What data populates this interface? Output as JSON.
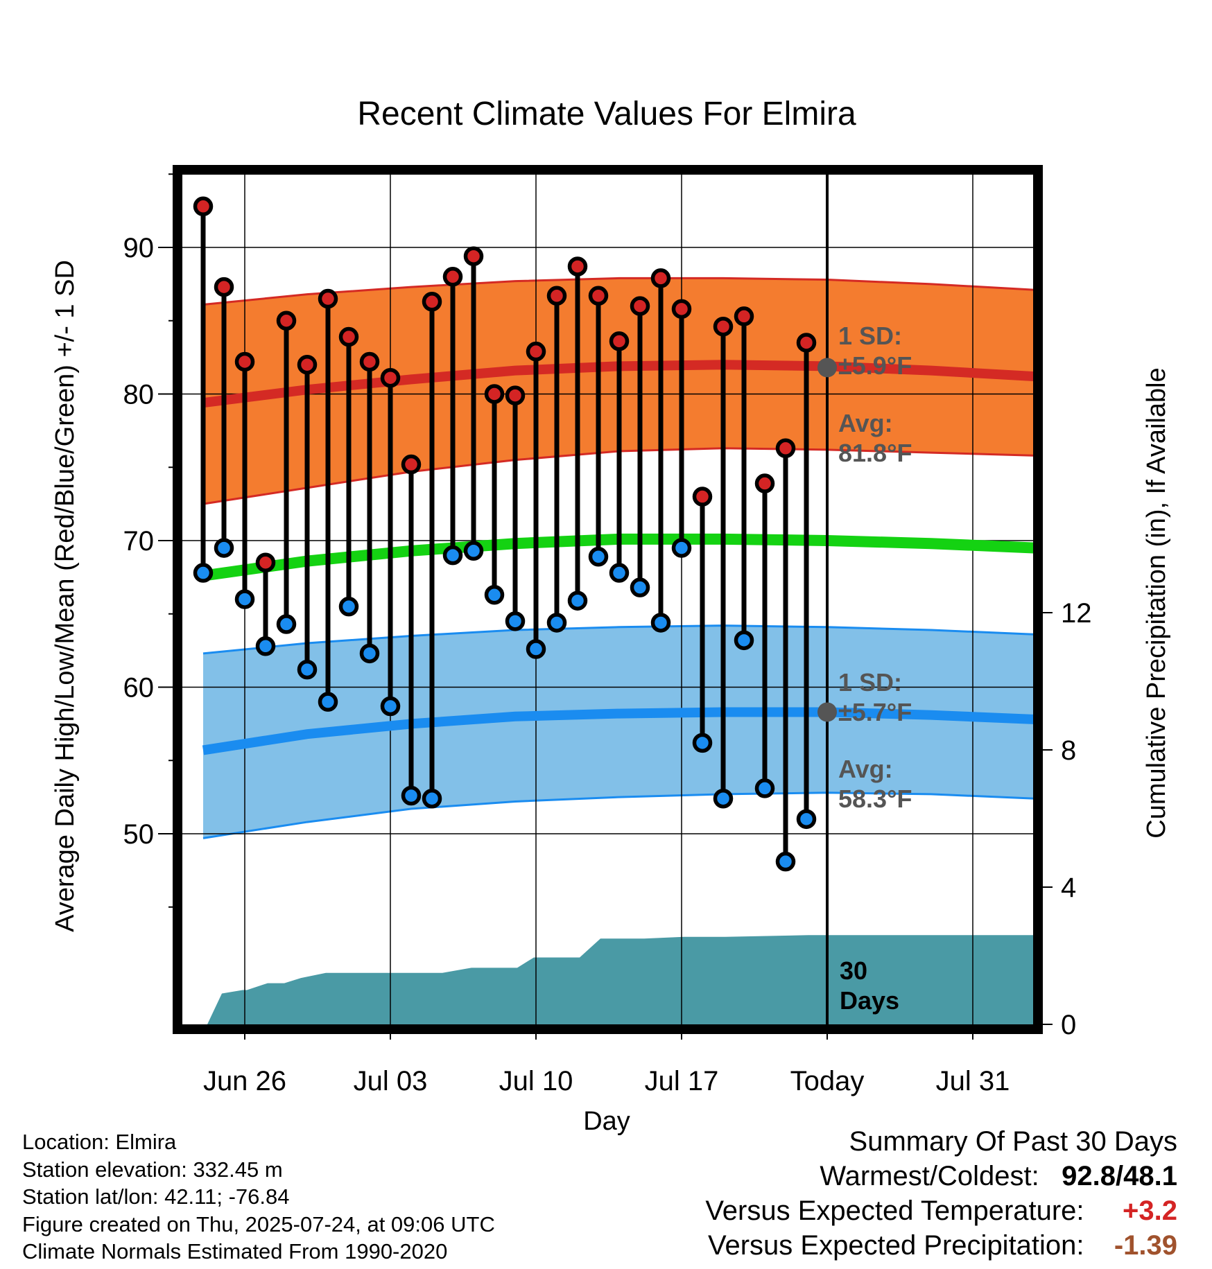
{
  "chart_data": {
    "type": "line",
    "title": "Recent Climate Values For Elmira",
    "xlabel": "Day",
    "ylabel": "Average Daily High/Low/Mean (Red/Blue/Green) +/- 1 SD",
    "y2label": "Cumulative Precipitation (in), If Available",
    "x_ticks": [
      "Jun 26",
      "Jul 03",
      "Jul 10",
      "Jul 17",
      "Today",
      "Jul 31"
    ],
    "x_tick_days": [
      2,
      9,
      16,
      23,
      30,
      37
    ],
    "xlim": [
      -1,
      41.3
    ],
    "ylim": [
      41,
      98
    ],
    "y_ticks": [
      50,
      60,
      70,
      80,
      90
    ],
    "y2lim": [
      0,
      24
    ],
    "y2_ticks": [
      0,
      4,
      8,
      12
    ],
    "today_day": 30,
    "today_label": [
      "30",
      "Days"
    ],
    "normals": {
      "days": [
        0,
        5,
        10,
        15,
        20,
        25,
        30,
        35,
        40
      ],
      "high_avg": [
        79.4,
        80.3,
        81.0,
        81.6,
        81.9,
        82.0,
        81.9,
        81.6,
        81.2
      ],
      "high_upper": [
        86.1,
        86.8,
        87.3,
        87.7,
        87.9,
        87.9,
        87.8,
        87.5,
        87.1
      ],
      "high_lower": [
        72.5,
        73.6,
        74.7,
        75.5,
        76.1,
        76.3,
        76.2,
        76.0,
        75.8
      ],
      "mean_avg": [
        67.6,
        68.6,
        69.3,
        69.8,
        70.1,
        70.1,
        70.0,
        69.8,
        69.5
      ],
      "low_avg": [
        55.7,
        56.8,
        57.5,
        58.0,
        58.2,
        58.3,
        58.3,
        58.1,
        57.8
      ],
      "low_upper": [
        62.3,
        63.0,
        63.5,
        63.9,
        64.1,
        64.2,
        64.1,
        63.9,
        63.6
      ],
      "low_lower": [
        49.7,
        50.8,
        51.7,
        52.2,
        52.5,
        52.7,
        52.8,
        52.7,
        52.4
      ]
    },
    "annotations": {
      "high_sd": [
        "1 SD:",
        "±5.9°F"
      ],
      "high_avg": [
        "Avg:",
        "81.8°F"
      ],
      "low_sd": [
        "1 SD:",
        "±5.7°F"
      ],
      "low_avg": [
        "Avg:",
        "58.3°F"
      ]
    },
    "highs": [
      92.8,
      87.3,
      82.2,
      68.5,
      85.0,
      82.0,
      86.5,
      83.9,
      82.2,
      81.1,
      75.2,
      86.3,
      88.0,
      89.4,
      80.0,
      79.9,
      82.9,
      86.7,
      88.7,
      86.7,
      83.6,
      86.0,
      87.9,
      85.8,
      73.0,
      84.6,
      85.3,
      73.9,
      76.3,
      83.5
    ],
    "lows": [
      67.8,
      69.5,
      66.0,
      62.8,
      64.3,
      61.2,
      59.0,
      65.5,
      62.3,
      58.7,
      52.6,
      52.4,
      69.0,
      69.3,
      66.3,
      64.5,
      62.6,
      64.4,
      65.9,
      68.9,
      67.8,
      66.8,
      64.4,
      69.5,
      56.2,
      52.4,
      63.2,
      53.1,
      48.1,
      51.0
    ],
    "precip": {
      "days": [
        0.2,
        0.9,
        1.9,
        2.1,
        3.1,
        3.9,
        4.7,
        5.9,
        9.1,
        10.1,
        11.5,
        12.9,
        15.1,
        15.9,
        16.1,
        18.1,
        19.1,
        20.1,
        21.2,
        23.1,
        25.1,
        29.1,
        30.1,
        40.3
      ],
      "values": [
        0.0,
        0.9,
        1.0,
        1.0,
        1.2,
        1.2,
        1.35,
        1.5,
        1.5,
        1.5,
        1.5,
        1.65,
        1.65,
        1.95,
        1.95,
        1.95,
        2.5,
        2.5,
        2.5,
        2.55,
        2.55,
        2.6,
        2.6,
        2.6
      ]
    },
    "colors": {
      "high_band": "#f47c2f",
      "high_line": "#d42a24",
      "mean_line": "#14d212",
      "low_band": "#82c0e8",
      "low_line": "#1a8cf0",
      "high_dot": "#d42424",
      "low_dot": "#1a8cf0",
      "precip_fill": "#4a9aa5",
      "annotation": "#555555"
    }
  },
  "footer": {
    "location": "Location: Elmira",
    "elevation": "Station elevation: 332.45 m",
    "latlon": "Station lat/lon: 42.11; -76.84",
    "created": "Figure created on Thu, 2025-07-24, at 09:06 UTC",
    "normals": "Climate Normals Estimated From 1990-2020"
  },
  "summary": {
    "title": "Summary Of Past 30 Days",
    "warmest_label": "Warmest/Coldest:",
    "warmest_value": "92.8/48.1",
    "temp_label": "Versus Expected Temperature:",
    "temp_value": "+3.2",
    "temp_color": "#d42424",
    "precip_label": "Versus Expected Precipitation:",
    "precip_value": "-1.39",
    "precip_color": "#a0522d"
  }
}
